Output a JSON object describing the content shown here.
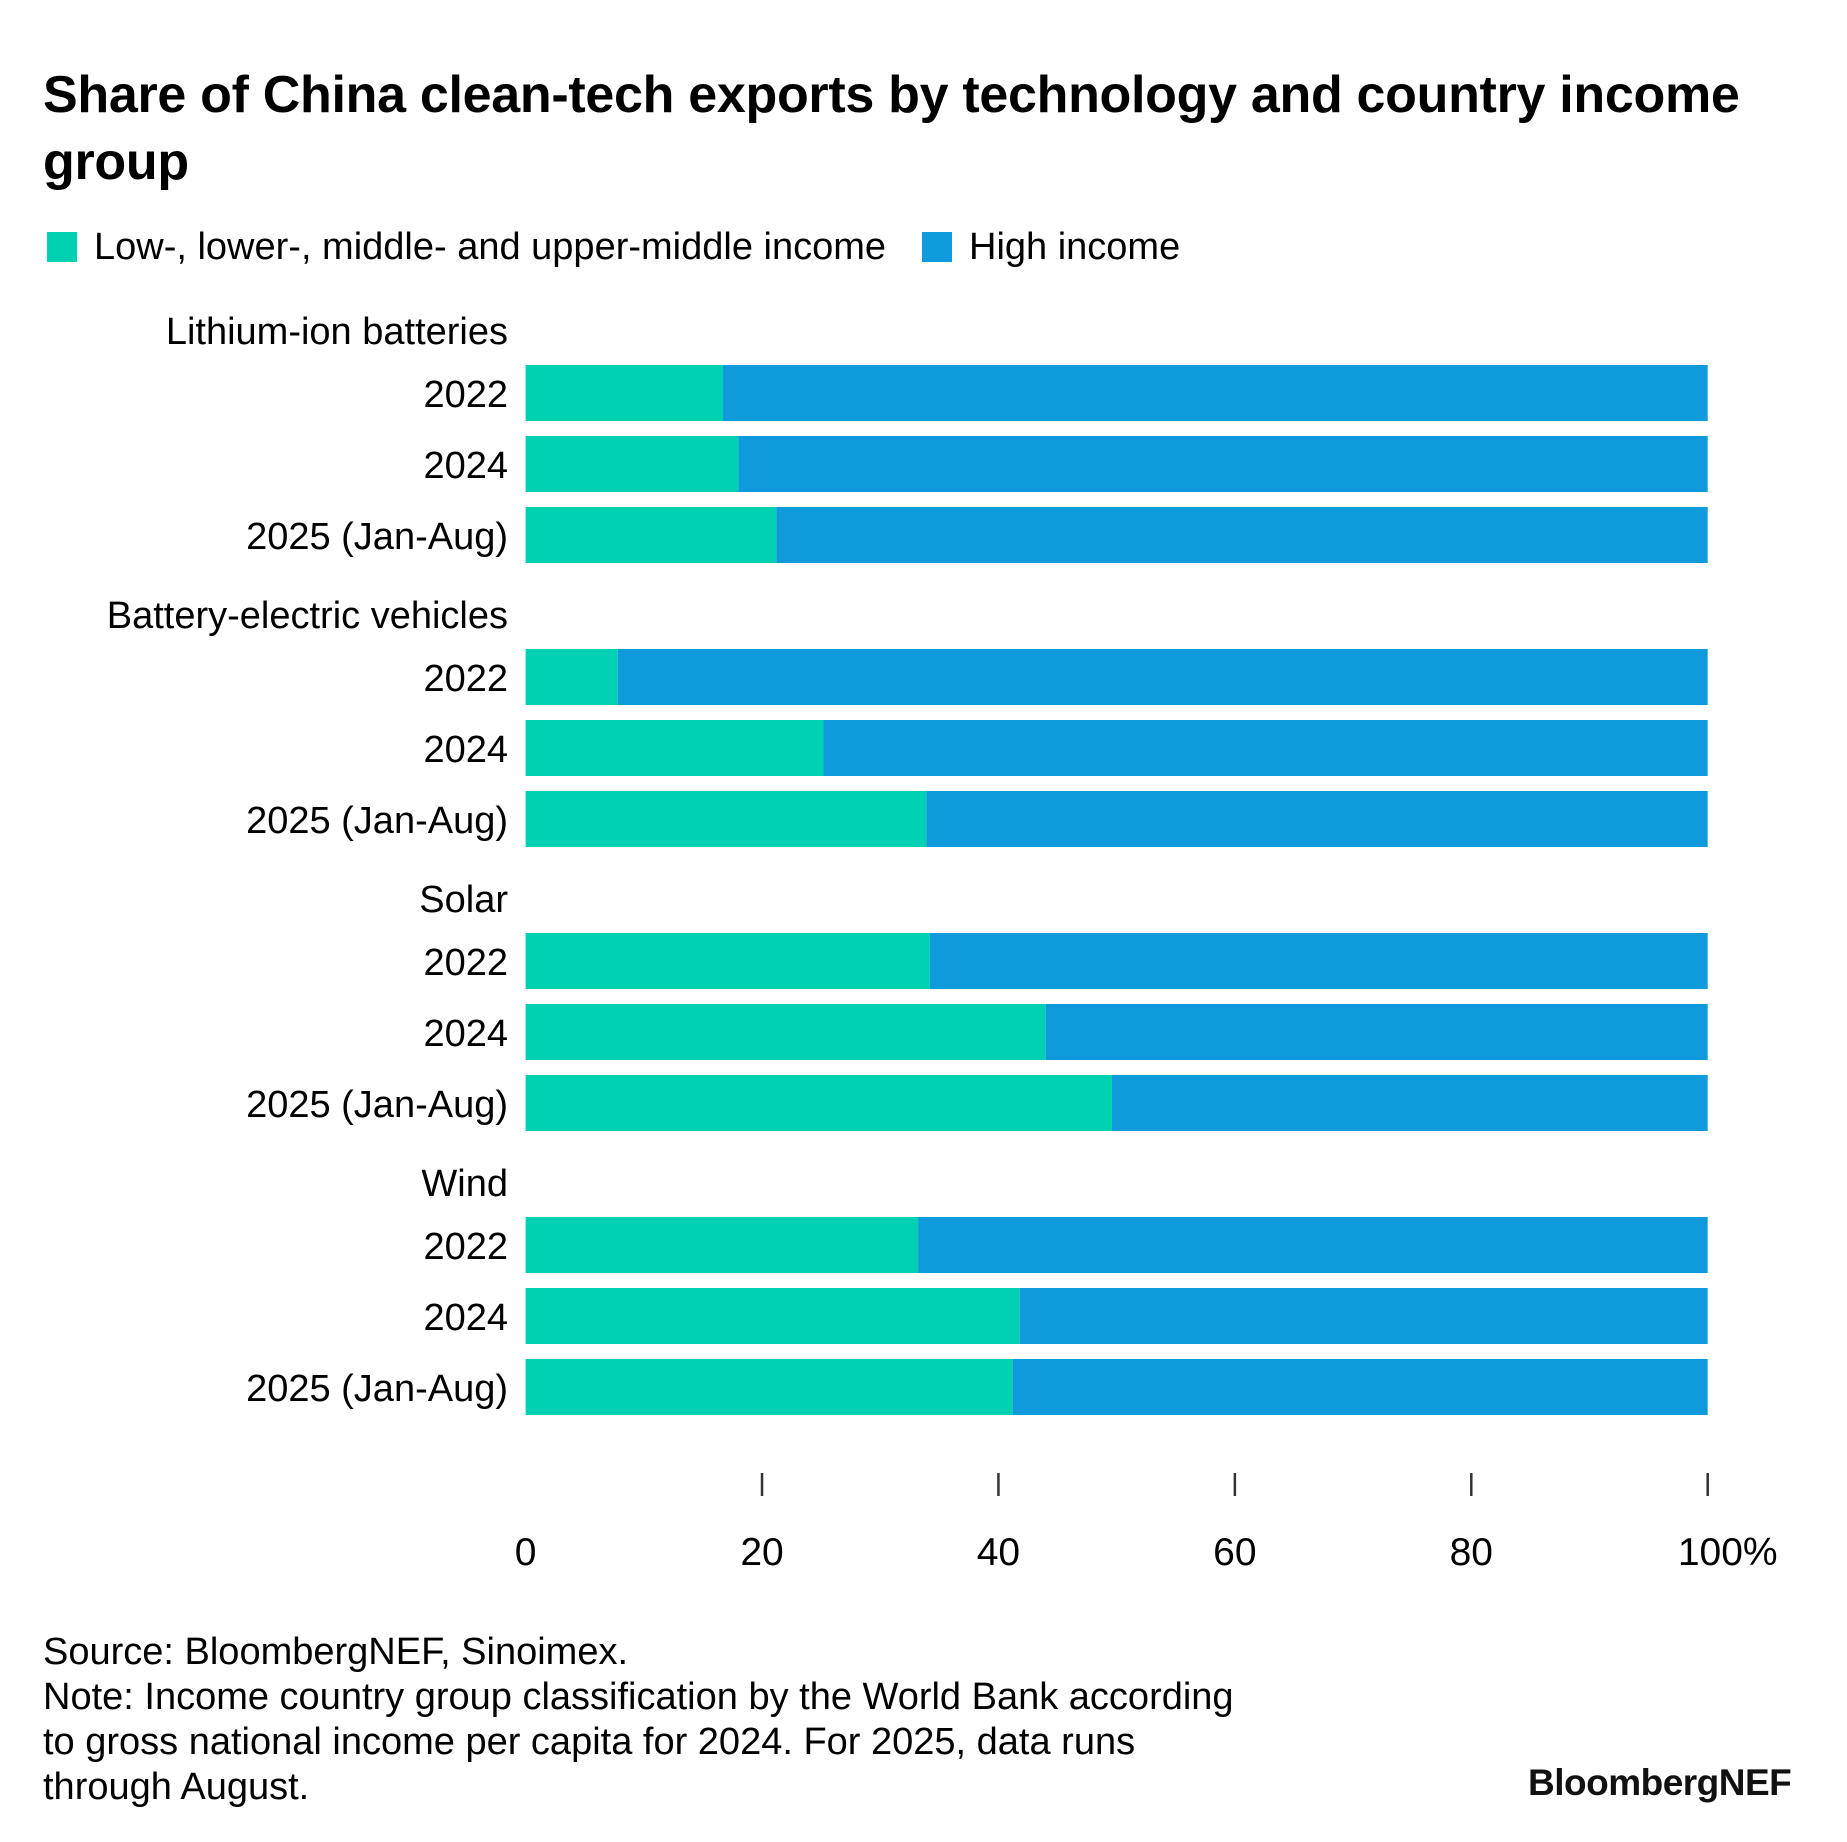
{
  "title": "Share of China clean-tech exports by technology and country income group",
  "colors": {
    "low_middle": "#00D1B2",
    "high": "#0F9BDB",
    "tick": "#333333"
  },
  "legend": [
    {
      "label": "Low-, lower-, middle- and upper-middle income",
      "color_key": "low_middle"
    },
    {
      "label": "High income",
      "color_key": "high"
    }
  ],
  "chart_data": {
    "type": "bar",
    "orientation": "horizontal",
    "stacked": true,
    "title": "Share of China clean-tech exports by technology and country income group",
    "xlabel": "",
    "ylabel": "",
    "xlim": [
      0,
      100
    ],
    "x_ticks": [
      0,
      20,
      40,
      60,
      80,
      100
    ],
    "x_tick_labels": [
      "0",
      "20",
      "40",
      "60",
      "80",
      "100%"
    ],
    "grid": false,
    "legend_position": "top-left",
    "groups": [
      {
        "name": "Lithium-ion batteries",
        "categories": [
          "2022",
          "2024",
          "2025 (Jan-Aug)"
        ],
        "series": [
          {
            "name": "Low-, lower-, middle- and upper-middle income",
            "values": [
              16.7,
              18.0,
              21.2
            ]
          },
          {
            "name": "High income",
            "values": [
              83.3,
              82.0,
              78.8
            ]
          }
        ]
      },
      {
        "name": "Battery-electric vehicles",
        "categories": [
          "2022",
          "2024",
          "2025 (Jan-Aug)"
        ],
        "series": [
          {
            "name": "Low-, lower-, middle- and upper-middle income",
            "values": [
              7.8,
              25.2,
              33.9
            ]
          },
          {
            "name": "High income",
            "values": [
              92.2,
              74.8,
              66.1
            ]
          }
        ]
      },
      {
        "name": "Solar",
        "categories": [
          "2022",
          "2024",
          "2025 (Jan-Aug)"
        ],
        "series": [
          {
            "name": "Low-, lower-, middle- and upper-middle income",
            "values": [
              34.2,
              44.0,
              49.6
            ]
          },
          {
            "name": "High income",
            "values": [
              65.8,
              56.0,
              50.4
            ]
          }
        ]
      },
      {
        "name": "Wind",
        "categories": [
          "2022",
          "2024",
          "2025 (Jan-Aug)"
        ],
        "series": [
          {
            "name": "Low-, lower-, middle- and upper-middle income",
            "values": [
              33.2,
              41.8,
              41.2
            ]
          },
          {
            "name": "High income",
            "values": [
              66.8,
              58.2,
              58.8
            ]
          }
        ]
      }
    ]
  },
  "footer": {
    "source": "Source: BloombergNEF, Sinoimex.",
    "note_lines": [
      "Note: Income country group classification by the World Bank according",
      "to gross national income per capita for 2024. For 2025, data runs",
      "through August."
    ]
  },
  "logo": "BloombergNEF"
}
